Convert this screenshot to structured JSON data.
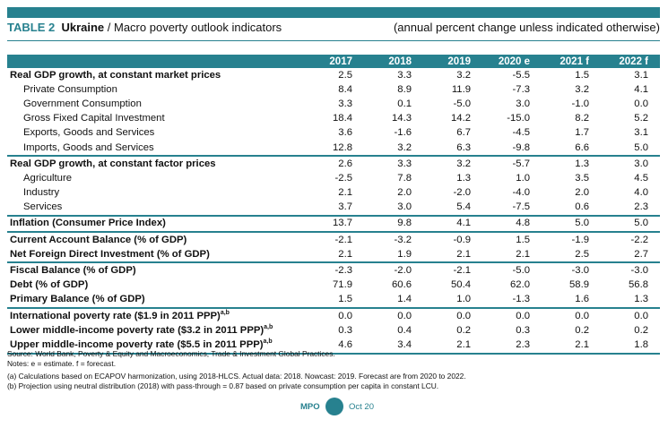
{
  "header": {
    "table_tag": "TABLE 2",
    "country": "Ukraine",
    "separator": " / ",
    "title": "Macro poverty outlook indicators",
    "subtitle": "(annual percent change unless indicated otherwise)"
  },
  "columns": [
    "",
    "2017",
    "2018",
    "2019",
    "2020 e",
    "2021 f",
    "2022 f"
  ],
  "rows": [
    {
      "label": "Real GDP growth, at constant market prices",
      "values": [
        "2.5",
        "3.3",
        "3.2",
        "-5.5",
        "1.5",
        "3.1"
      ],
      "style": "bold",
      "sup": ""
    },
    {
      "label": "Private Consumption",
      "values": [
        "8.4",
        "8.9",
        "11.9",
        "-7.3",
        "3.2",
        "4.1"
      ],
      "style": "sub",
      "sup": ""
    },
    {
      "label": "Government Consumption",
      "values": [
        "3.3",
        "0.1",
        "-5.0",
        "3.0",
        "-1.0",
        "0.0"
      ],
      "style": "sub",
      "sup": ""
    },
    {
      "label": "Gross Fixed Capital Investment",
      "values": [
        "18.4",
        "14.3",
        "14.2",
        "-15.0",
        "8.2",
        "5.2"
      ],
      "style": "sub",
      "sup": ""
    },
    {
      "label": "Exports, Goods and Services",
      "values": [
        "3.6",
        "-1.6",
        "6.7",
        "-4.5",
        "1.7",
        "3.1"
      ],
      "style": "sub",
      "sup": ""
    },
    {
      "label": "Imports, Goods and Services",
      "values": [
        "12.8",
        "3.2",
        "6.3",
        "-9.8",
        "6.6",
        "5.0"
      ],
      "style": "sub",
      "sep": true,
      "sup": ""
    },
    {
      "label": "Real GDP growth, at constant factor prices",
      "values": [
        "2.6",
        "3.3",
        "3.2",
        "-5.7",
        "1.3",
        "3.0"
      ],
      "style": "bold",
      "sup": ""
    },
    {
      "label": "Agriculture",
      "values": [
        "-2.5",
        "7.8",
        "1.3",
        "1.0",
        "3.5",
        "4.5"
      ],
      "style": "sub",
      "sup": ""
    },
    {
      "label": "Industry",
      "values": [
        "2.1",
        "2.0",
        "-2.0",
        "-4.0",
        "2.0",
        "4.0"
      ],
      "style": "sub",
      "sup": ""
    },
    {
      "label": "Services",
      "values": [
        "3.7",
        "3.0",
        "5.4",
        "-7.5",
        "0.6",
        "2.3"
      ],
      "style": "sub",
      "sep": true,
      "sup": ""
    },
    {
      "label": "Inflation (Consumer Price Index)",
      "values": [
        "13.7",
        "9.8",
        "4.1",
        "4.8",
        "5.0",
        "5.0"
      ],
      "style": "bold",
      "sep": true,
      "sup": ""
    },
    {
      "label": "Current Account Balance (% of GDP)",
      "values": [
        "-2.1",
        "-3.2",
        "-0.9",
        "1.5",
        "-1.9",
        "-2.2"
      ],
      "style": "bold",
      "sup": ""
    },
    {
      "label": "Net Foreign Direct Investment (% of GDP)",
      "values": [
        "2.1",
        "1.9",
        "2.1",
        "2.1",
        "2.5",
        "2.7"
      ],
      "style": "bold",
      "sep": true,
      "sup": ""
    },
    {
      "label": "Fiscal Balance (% of GDP)",
      "values": [
        "-2.3",
        "-2.0",
        "-2.1",
        "-5.0",
        "-3.0",
        "-3.0"
      ],
      "style": "bold",
      "sup": ""
    },
    {
      "label": "Debt (% of GDP)",
      "values": [
        "71.9",
        "60.6",
        "50.4",
        "62.0",
        "58.9",
        "56.8"
      ],
      "style": "bold",
      "sup": ""
    },
    {
      "label": "Primary Balance (% of GDP)",
      "values": [
        "1.5",
        "1.4",
        "1.0",
        "-1.3",
        "1.6",
        "1.3"
      ],
      "style": "bold",
      "sep": true,
      "sup": ""
    },
    {
      "label": "International poverty rate ($1.9 in 2011 PPP)",
      "values": [
        "0.0",
        "0.0",
        "0.0",
        "0.0",
        "0.0",
        "0.0"
      ],
      "style": "bold",
      "sup": "a,b"
    },
    {
      "label": "Lower middle-income poverty rate ($3.2 in 2011 PPP)",
      "values": [
        "0.3",
        "0.4",
        "0.2",
        "0.3",
        "0.2",
        "0.2"
      ],
      "style": "bold",
      "sup": "a,b"
    },
    {
      "label": "Upper middle-income poverty rate ($5.5 in 2011 PPP)",
      "values": [
        "4.6",
        "3.4",
        "2.1",
        "2.3",
        "2.1",
        "1.8"
      ],
      "style": "bold",
      "sep": true,
      "sup": "a,b"
    }
  ],
  "notes": [
    "Source: World Bank, Poverty & Equity and Macroeconomics, Trade & Investment Global Practices.",
    "Notes: e = estimate. f = forecast.",
    "(a) Calculations based on ECAPOV harmonization, using 2018-HLCS. Actual data: 2018. Nowcast: 2019. Forecast are from 2020 to 2022.",
    "(b) Projection using neutral distribution (2018) with pass-through = 0.87  based on private consumption per capita in constant LCU."
  ],
  "footer": {
    "left": "MPO",
    "right": "Oct 20"
  },
  "colors": {
    "accent": "#27818f"
  }
}
